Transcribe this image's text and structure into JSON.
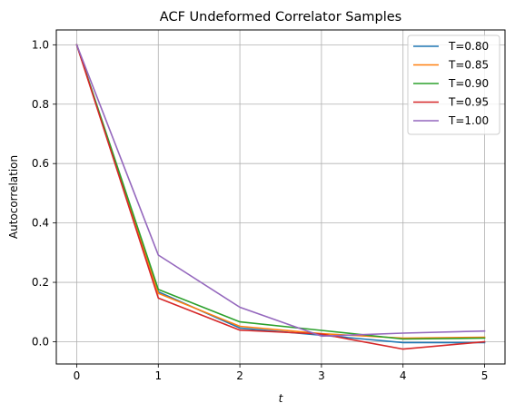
{
  "chart_data": {
    "type": "line",
    "title": "ACF Undeformed Correlator Samples",
    "xlabel": "t",
    "ylabel": "Autocorrelation",
    "x": [
      0,
      1,
      2,
      3,
      4,
      5
    ],
    "xlim": [
      -0.25,
      5.25
    ],
    "ylim": [
      -0.075,
      1.05
    ],
    "xticks": [
      0,
      1,
      2,
      3,
      4,
      5
    ],
    "xtick_labels": [
      "0",
      "1",
      "2",
      "3",
      "4",
      "5"
    ],
    "yticks": [
      0.0,
      0.2,
      0.4,
      0.6,
      0.8,
      1.0
    ],
    "ytick_labels": [
      "0.0",
      "0.2",
      "0.4",
      "0.6",
      "0.8",
      "1.0"
    ],
    "grid": true,
    "legend_position": "top-right",
    "series": [
      {
        "name": "T=0.80",
        "color": "#1f77b4",
        "values": [
          1.0,
          0.168,
          0.046,
          0.022,
          -0.003,
          -0.003
        ]
      },
      {
        "name": "T=0.85",
        "color": "#ff7f0e",
        "values": [
          1.0,
          0.163,
          0.052,
          0.027,
          0.012,
          0.015
        ]
      },
      {
        "name": "T=0.90",
        "color": "#2ca02c",
        "values": [
          1.0,
          0.176,
          0.067,
          0.038,
          0.009,
          0.012
        ]
      },
      {
        "name": "T=0.95",
        "color": "#d62728",
        "values": [
          1.0,
          0.147,
          0.039,
          0.026,
          -0.025,
          0.0
        ]
      },
      {
        "name": "T=1.00",
        "color": "#9467bd",
        "values": [
          1.0,
          0.292,
          0.116,
          0.019,
          0.029,
          0.036
        ]
      }
    ]
  }
}
